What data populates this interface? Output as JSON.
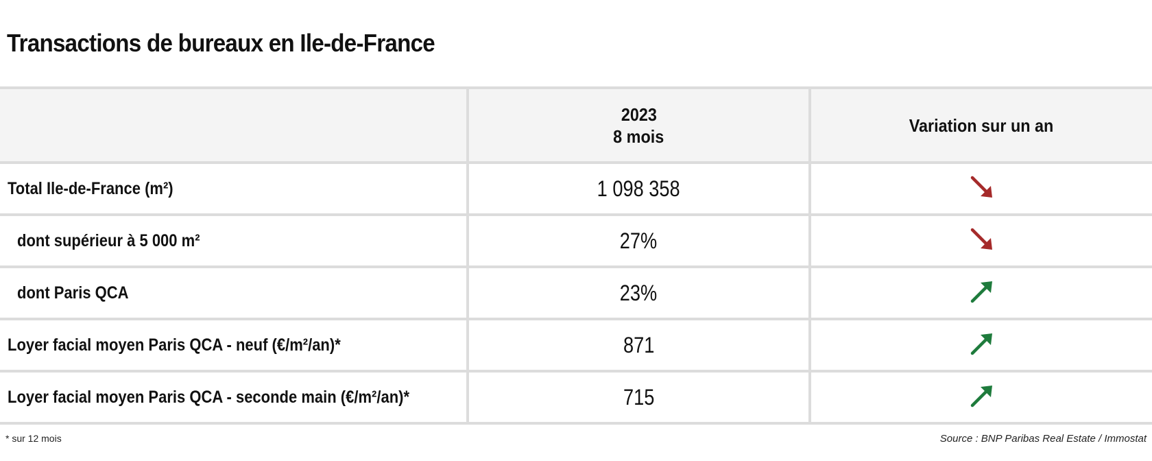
{
  "title": "Transactions de bureaux en Ile-de-France",
  "header": {
    "col_label": "",
    "col_value_line1": "2023",
    "col_value_line2": "8 mois",
    "col_trend": "Variation sur un an"
  },
  "rows": [
    {
      "label": "Total Ile-de-France (m²)",
      "value": "1 098 358",
      "trend": "down"
    },
    {
      "label": "dont supérieur à 5 000 m²",
      "value": "27%",
      "trend": "down"
    },
    {
      "label": "dont Paris QCA",
      "value": "23%",
      "trend": "up"
    },
    {
      "label": "Loyer facial moyen Paris QCA - neuf (€/m²/an)*",
      "value": "871",
      "trend": "up"
    },
    {
      "label": "Loyer facial moyen Paris QCA - seconde main (€/m²/an)*",
      "value": "715",
      "trend": "up"
    }
  ],
  "footnote": "* sur 12 mois",
  "source": "Source : BNP Paribas Real Estate / Immostat",
  "colors": {
    "down": "#a52a2a",
    "up": "#1e7b3c",
    "grid": "#dcdcdc",
    "header_bg": "#f4f4f4"
  },
  "icons": {
    "down": "arrow-down-right-icon",
    "up": "arrow-up-right-icon"
  }
}
